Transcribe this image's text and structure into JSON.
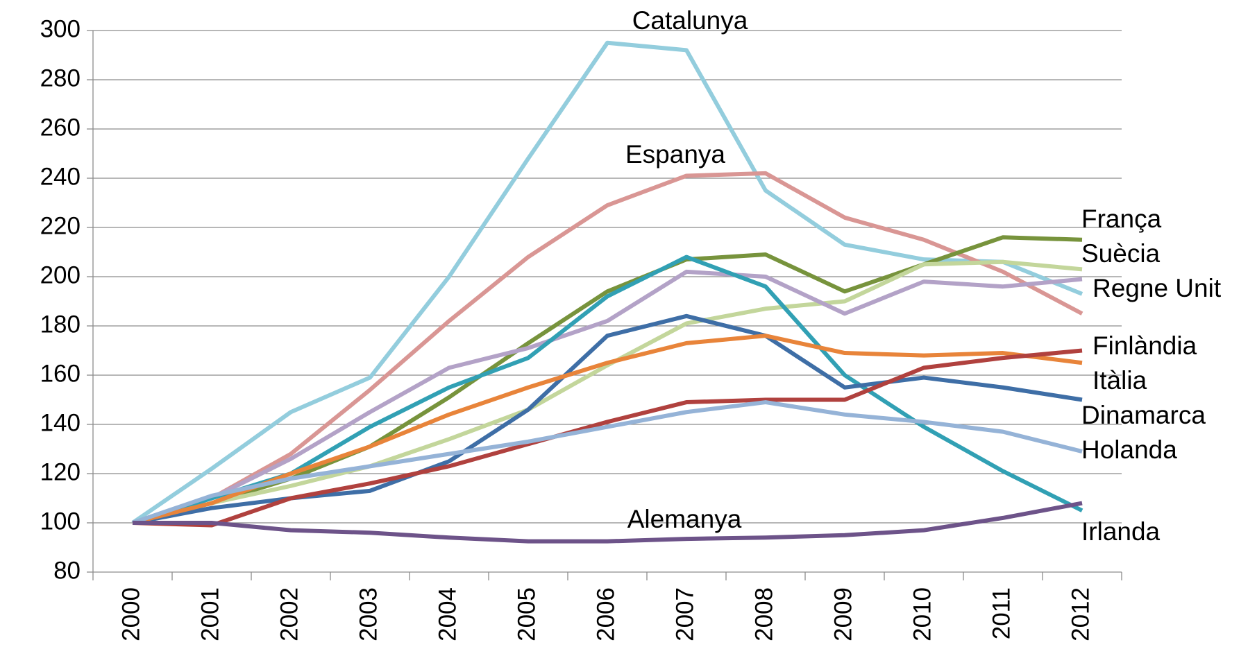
{
  "chart_data": {
    "type": "line",
    "categories": [
      "2000",
      "2001",
      "2002",
      "2003",
      "2004",
      "2005",
      "2006",
      "2007",
      "2008",
      "2009",
      "2010",
      "2011",
      "2012"
    ],
    "ylim": [
      80,
      300
    ],
    "yticks": [
      80,
      100,
      120,
      140,
      160,
      180,
      200,
      220,
      240,
      260,
      280,
      300
    ],
    "grid": true,
    "series": [
      {
        "name": "Catalunya",
        "color": "#93cddd",
        "values": [
          100,
          122,
          145,
          159,
          200,
          248,
          295,
          292,
          235,
          213,
          207,
          206,
          193
        ]
      },
      {
        "name": "Espanya",
        "color": "#d99694",
        "values": [
          100,
          110,
          128,
          154,
          182,
          208,
          229,
          241,
          242,
          224,
          215,
          202,
          185
        ]
      },
      {
        "name": "França",
        "color": "#77933c",
        "values": [
          100,
          108,
          118,
          131,
          151,
          173,
          194,
          207,
          209,
          194,
          205,
          216,
          215
        ]
      },
      {
        "name": "Suècia",
        "color": "#c3d69b",
        "values": [
          100,
          108,
          115,
          123,
          134,
          146,
          164,
          181,
          187,
          190,
          205,
          206,
          203
        ]
      },
      {
        "name": "Regne Unit",
        "color": "#b3a2c7",
        "values": [
          100,
          110,
          126,
          145,
          163,
          171,
          182,
          202,
          200,
          185,
          198,
          196,
          199
        ]
      },
      {
        "name": "Irlanda",
        "color": "#31a0b4",
        "values": [
          100,
          110,
          120,
          139,
          155,
          167,
          192,
          208,
          196,
          160,
          139,
          121,
          105
        ]
      },
      {
        "name": "Dinamarca",
        "color": "#3e6ea6",
        "values": [
          100,
          106,
          110,
          113,
          125,
          146,
          176,
          184,
          176,
          155,
          159,
          155,
          150
        ]
      },
      {
        "name": "Itàlia",
        "color": "#e8843a",
        "values": [
          100,
          108,
          120,
          131,
          144,
          155,
          165,
          173,
          176,
          169,
          168,
          169,
          165
        ]
      },
      {
        "name": "Finlàndia",
        "color": "#b0413e",
        "values": [
          100,
          99,
          110,
          116,
          123,
          132,
          141,
          149,
          150,
          150,
          163,
          167,
          170
        ]
      },
      {
        "name": "Holanda",
        "color": "#95b3d7",
        "values": [
          100,
          111,
          118,
          123,
          128,
          133,
          139,
          145,
          149,
          144,
          141,
          137,
          129
        ]
      },
      {
        "name": "Alemanya",
        "color": "#6d5389",
        "values": [
          100,
          100,
          97,
          96,
          94,
          92.5,
          92.5,
          93.5,
          94,
          95,
          97,
          102,
          108
        ]
      }
    ]
  }
}
